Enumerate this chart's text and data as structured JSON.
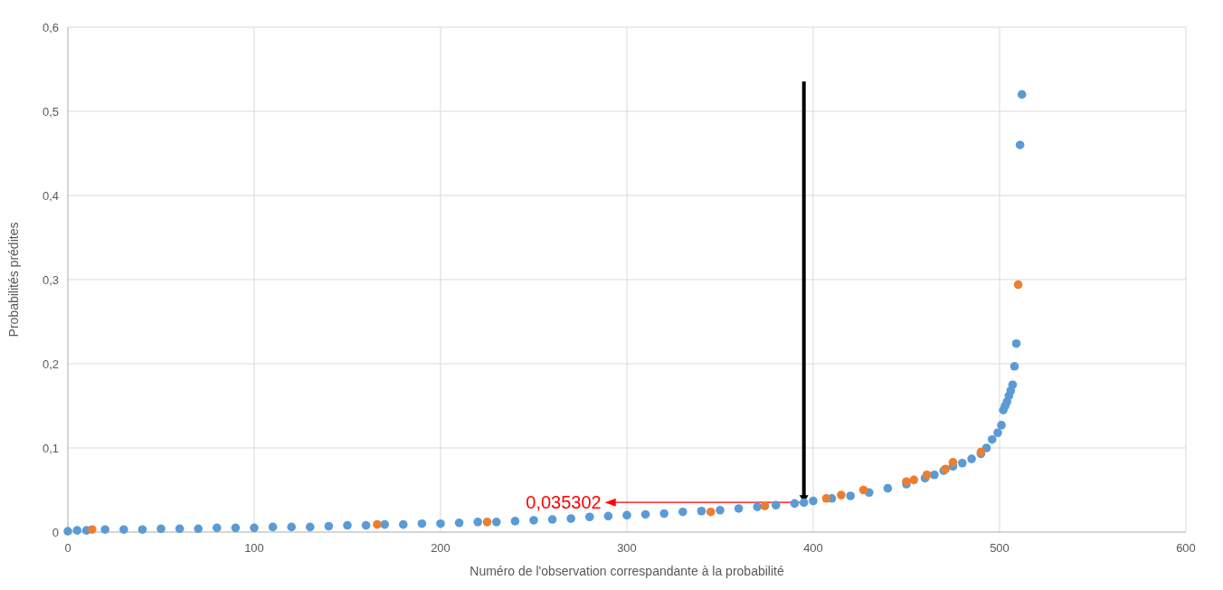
{
  "chart_data": {
    "type": "scatter",
    "xlabel": "Numéro de l'observation correspandante à la probabilité",
    "ylabel": "Probabilités prédites",
    "xlim": [
      0,
      600
    ],
    "xticks": [
      0,
      100,
      200,
      300,
      400,
      500,
      600
    ],
    "ylim": [
      0,
      0.6
    ],
    "yticks": [
      {
        "value": 0,
        "label": "0"
      },
      {
        "value": 0.1,
        "label": "0,1"
      },
      {
        "value": 0.2,
        "label": "0,2"
      },
      {
        "value": 0.3,
        "label": "0,3"
      },
      {
        "value": 0.4,
        "label": "0,4"
      },
      {
        "value": 0.5,
        "label": "0,5"
      },
      {
        "value": 0.6,
        "label": "0,6"
      }
    ],
    "grid": true,
    "marker": "circle",
    "series": [
      {
        "color": "#5b9bd5",
        "x": [
          0,
          5,
          10,
          20,
          30,
          40,
          50,
          60,
          70,
          80,
          90,
          100,
          110,
          120,
          130,
          140,
          150,
          160,
          170,
          180,
          190,
          200,
          210,
          220,
          230,
          240,
          250,
          260,
          270,
          280,
          290,
          300,
          310,
          320,
          330,
          340,
          350,
          360,
          370,
          380,
          390,
          395,
          400,
          410,
          420,
          430,
          440,
          450,
          460,
          465,
          470,
          475,
          480,
          485,
          490,
          493,
          496,
          499,
          501,
          502,
          503,
          504,
          505,
          506,
          507,
          508,
          509,
          511,
          512
        ],
        "values": [
          0.001,
          0.002,
          0.002,
          0.003,
          0.003,
          0.003,
          0.004,
          0.004,
          0.004,
          0.005,
          0.005,
          0.005,
          0.006,
          0.006,
          0.006,
          0.007,
          0.008,
          0.008,
          0.009,
          0.009,
          0.01,
          0.01,
          0.011,
          0.012,
          0.012,
          0.013,
          0.014,
          0.015,
          0.016,
          0.018,
          0.019,
          0.02,
          0.021,
          0.022,
          0.024,
          0.025,
          0.026,
          0.028,
          0.03,
          0.032,
          0.034,
          0.035,
          0.037,
          0.04,
          0.043,
          0.047,
          0.052,
          0.057,
          0.064,
          0.068,
          0.073,
          0.078,
          0.082,
          0.087,
          0.093,
          0.1,
          0.11,
          0.118,
          0.127,
          0.145,
          0.15,
          0.155,
          0.162,
          0.168,
          0.175,
          0.197,
          0.224,
          0.46,
          0.52
        ]
      },
      {
        "color": "#ed7d31",
        "x": [
          13,
          166,
          225,
          345,
          374,
          407,
          415,
          427,
          450,
          454,
          461,
          471,
          475,
          490,
          510
        ],
        "values": [
          0.003,
          0.009,
          0.012,
          0.024,
          0.031,
          0.04,
          0.044,
          0.05,
          0.06,
          0.062,
          0.068,
          0.075,
          0.083,
          0.095,
          0.294
        ]
      }
    ],
    "annotations": [
      {
        "text": "0,035302",
        "x": 395,
        "y": 0.035302
      }
    ]
  }
}
